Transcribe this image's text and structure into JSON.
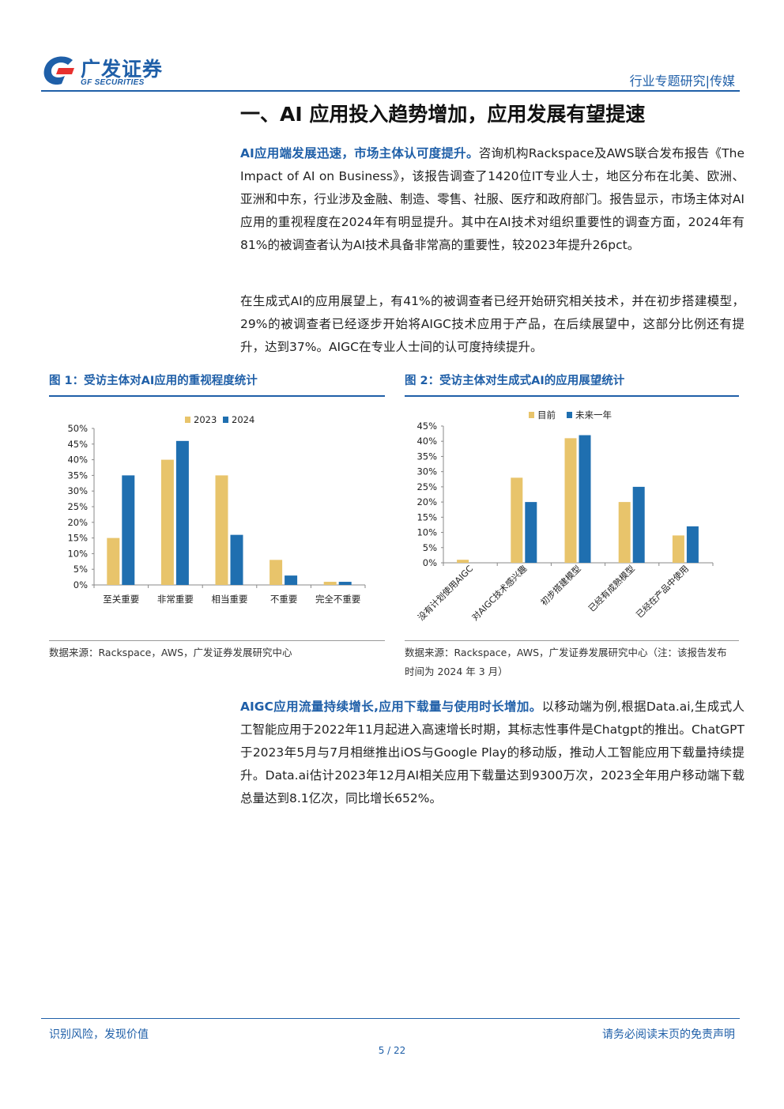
{
  "header": {
    "logo_cn": "广发证券",
    "logo_en": "GF SECURITIES",
    "right": "行业专题研究|传媒"
  },
  "section_title": "一、AI 应用投入趋势增加，应用发展有望提速",
  "para1": {
    "bold": "AI应用端发展迅速，市场主体认可度提升。",
    "text": "咨询机构Rackspace及AWS联合发布报告《The Impact of AI on Business》，该报告调查了1420位IT专业人士，地区分布在北美、欧洲、亚洲和中东，行业涉及金融、制造、零售、社服、医疗和政府部门。报告显示，市场主体对AI应用的重视程度在2024年有明显提升。其中在AI技术对组织重要性的调查方面，2024年有81%的被调查者认为AI技术具备非常高的重要性，较2023年提升26pct。"
  },
  "para2": {
    "text": "在生成式AI的应用展望上，有41%的被调查者已经开始研究相关技术，并在初步搭建模型，29%的被调查者已经逐步开始将AIGC技术应用于产品，在后续展望中，这部分比例还有提升，达到37%。AIGC在专业人士间的认可度持续提升。"
  },
  "fig1": {
    "title": "图 1：受访主体对AI应用的重视程度统计",
    "source": "数据来源：Rackspace，AWS，广发证券发展研究中心"
  },
  "fig2": {
    "title": "图 2：受访主体对生成式AI的应用展望统计",
    "source": "数据来源：Rackspace，AWS，广发证券发展研究中心（注：该报告发布时间为 2024 年 3 月）"
  },
  "para3": {
    "bold": "AIGC应用流量持续增长,应用下载量与使用时长增加。",
    "text": "以移动端为例,根据Data.ai,生成式人工智能应用于2022年11月起进入高速增长时期，其标志性事件是Chatgpt的推出。ChatGPT于2023年5月与7月相继推出iOS与Google Play的移动版，推动人工智能应用下载量持续提升。Data.ai估计2023年12月AI相关应用下载量达到9300万次，2023全年用户移动端下载总量达到8.1亿次，同比增长652%。"
  },
  "footer": {
    "left": "识别风险，发现价值",
    "right": "请务必阅读末页的免责声明",
    "page": "5 / 22"
  },
  "colors": {
    "brand": "#1f5fa8",
    "gold": "#e8c46b",
    "blue": "#1f6fb0"
  },
  "chart_data": [
    {
      "type": "bar",
      "categories": [
        "至关重要",
        "非常重要",
        "相当重要",
        "不重要",
        "完全不重要"
      ],
      "series": [
        {
          "name": "2023",
          "values": [
            15,
            40,
            35,
            8,
            1
          ]
        },
        {
          "name": "2024",
          "values": [
            35,
            46,
            16,
            3,
            1
          ]
        }
      ],
      "ylim": [
        0,
        50
      ],
      "yticks": [
        "0%",
        "5%",
        "10%",
        "15%",
        "20%",
        "25%",
        "30%",
        "35%",
        "40%",
        "45%",
        "50%"
      ],
      "legend": "top"
    },
    {
      "type": "bar",
      "categories": [
        "没有计划使用AIGC",
        "对AIGC技术感兴趣",
        "初步搭建模型",
        "已经有成熟模型",
        "已经在产品中使用"
      ],
      "series": [
        {
          "name": "目前",
          "values": [
            1,
            28,
            41,
            20,
            9
          ]
        },
        {
          "name": "未来一年",
          "values": [
            0,
            20,
            42,
            25,
            12
          ]
        }
      ],
      "ylim": [
        0,
        45
      ],
      "yticks": [
        "0%",
        "5%",
        "10%",
        "15%",
        "20%",
        "25%",
        "30%",
        "35%",
        "40%",
        "45%"
      ],
      "legend": "top"
    }
  ]
}
